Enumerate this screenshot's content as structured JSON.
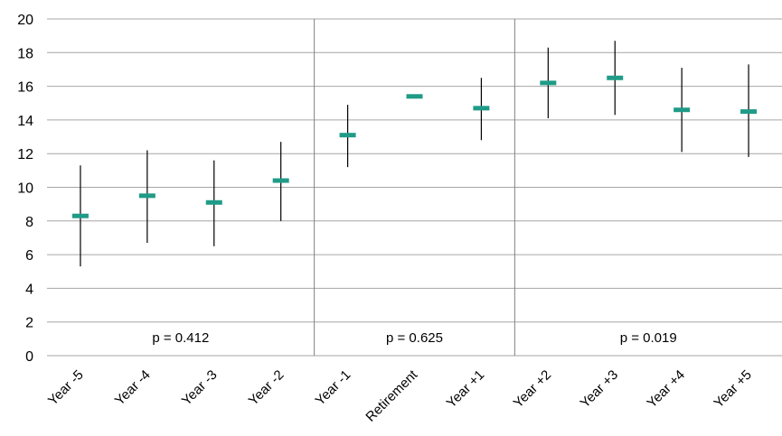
{
  "chart_data": {
    "type": "scatter",
    "title": "",
    "xlabel": "",
    "ylabel": "",
    "ylim": [
      0,
      20
    ],
    "y_ticks": [
      0,
      2,
      4,
      6,
      8,
      10,
      12,
      14,
      16,
      18,
      20
    ],
    "grid": true,
    "legend": "none",
    "marker_color": "#1f9b87",
    "errorbar_color": "#000000",
    "categories": [
      "Year -5",
      "Year -4",
      "Year -3",
      "Year -2",
      "Year -1",
      "Retirement",
      "Year +1",
      "Year +2",
      "Year +3",
      "Year +4",
      "Year +5"
    ],
    "series": [
      {
        "values": [
          8.3,
          9.5,
          9.1,
          10.4,
          13.1,
          15.4,
          14.7,
          16.2,
          16.5,
          14.6,
          14.5
        ],
        "lower": [
          5.3,
          6.7,
          6.5,
          8.0,
          11.2,
          15.4,
          12.8,
          14.1,
          14.3,
          12.1,
          11.8
        ],
        "upper": [
          11.3,
          12.2,
          11.6,
          12.7,
          14.9,
          15.4,
          16.5,
          18.3,
          18.7,
          17.1,
          17.3
        ]
      }
    ],
    "groups": [
      {
        "label": "p = 0.412",
        "start": 0,
        "end": 3
      },
      {
        "label": "p = 0.625",
        "start": 4,
        "end": 6
      },
      {
        "label": "p = 0.019",
        "start": 7,
        "end": 10
      }
    ]
  }
}
